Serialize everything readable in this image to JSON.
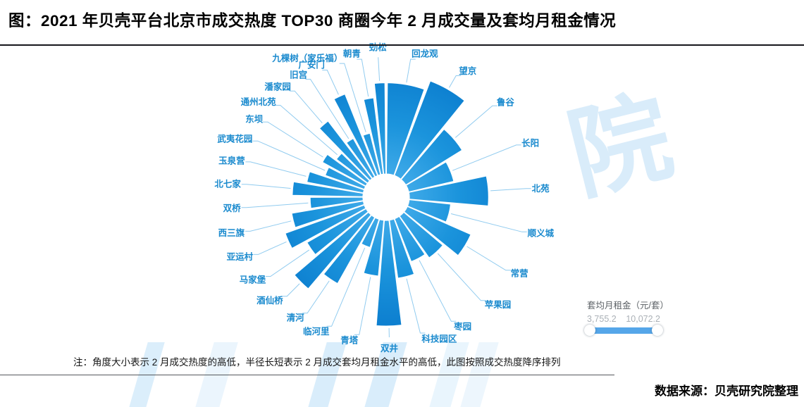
{
  "page": {
    "title": "图：2021 年贝壳平台北京市成交热度 TOP30 商圈今年 2 月成交量及套均月租金情况",
    "note": "注：角度大小表示 2 月成交热度的高低，半径长短表示 2 月成交套均月租金水平的高低，此图按照成交热度降序排列",
    "source": "数据来源：贝壳研究院整理",
    "watermark_char": "院",
    "colors": {
      "petal_inner": "#7dcbf3",
      "petal_mid": "#1b94dc",
      "petal_outer": "#0c7ecf",
      "leader_line": "#90cbef",
      "label_text": "#1a8ace",
      "legend_bar": "#55a6e9",
      "watermark": "#d9ecfa"
    }
  },
  "legend": {
    "title": "套均月租金（元/套）",
    "min_label": "3,755.2",
    "max_label": "10,072.2"
  },
  "chart_data": {
    "type": "rose",
    "subtype": "nightingale-polar",
    "title": "2021年贝壳平台北京市成交热度TOP30商圈今年2月成交量及套均月租金情况",
    "angle_encodes": "2月成交热度（角度越大热度越高）",
    "radius_encodes": "2月成交套均月租金（元/套）",
    "sort": "按成交热度降序、自12点钟方向顺时针排列",
    "rent_min": 3755.2,
    "rent_max": 10072.2,
    "legend_position": "bottom-right",
    "districts": [
      {
        "name": "回龙观",
        "heat_weight": 20.0,
        "avg_rent": 8865
      },
      {
        "name": "望京",
        "heat_weight": 19.5,
        "avg_rent": 9690
      },
      {
        "name": "鲁谷",
        "heat_weight": 19.0,
        "avg_rent": 6780
      },
      {
        "name": "长阳",
        "heat_weight": 18.5,
        "avg_rent": 5130
      },
      {
        "name": "北苑",
        "heat_weight": 18.0,
        "avg_rent": 7870
      },
      {
        "name": "顺义城",
        "heat_weight": 17.5,
        "avg_rent": 4750
      },
      {
        "name": "常营",
        "heat_weight": 16.5,
        "avg_rent": 7050
      },
      {
        "name": "苹果园",
        "heat_weight": 15.5,
        "avg_rent": 5540
      },
      {
        "name": "枣园",
        "heat_weight": 14.0,
        "avg_rent": 5110
      },
      {
        "name": "科技园区",
        "heat_weight": 13.0,
        "avg_rent": 6170
      },
      {
        "name": "双井",
        "heat_weight": 12.5,
        "avg_rent": 10072.2
      },
      {
        "name": "青塔",
        "heat_weight": 12.0,
        "avg_rent": 5950
      },
      {
        "name": "临河里",
        "heat_weight": 11.5,
        "avg_rent": 3755.2
      },
      {
        "name": "清河",
        "heat_weight": 11.0,
        "avg_rent": 7600
      },
      {
        "name": "酒仙桥",
        "heat_weight": 10.5,
        "avg_rent": 9360
      },
      {
        "name": "马家堡",
        "heat_weight": 10.5,
        "avg_rent": 6940
      },
      {
        "name": "亚运村",
        "heat_weight": 10.0,
        "avg_rent": 8260
      },
      {
        "name": "西三旗",
        "heat_weight": 10.0,
        "avg_rent": 7320
      },
      {
        "name": "双桥",
        "heat_weight": 9.5,
        "avg_rent": 5680
      },
      {
        "name": "北七家",
        "heat_weight": 9.5,
        "avg_rent": 7160
      },
      {
        "name": "玉泉营",
        "heat_weight": 9.0,
        "avg_rent": 6060
      },
      {
        "name": "武夷花园",
        "heat_weight": 9.0,
        "avg_rent": 4740
      },
      {
        "name": "东坝",
        "heat_weight": 8.5,
        "avg_rent": 5400
      },
      {
        "name": "通州北苑",
        "heat_weight": 8.5,
        "avg_rent": 4560
      },
      {
        "name": "潘家园",
        "heat_weight": 8.0,
        "avg_rent": 7320
      },
      {
        "name": "旧宫",
        "heat_weight": 8.0,
        "avg_rent": 4960
      },
      {
        "name": "广安门",
        "heat_weight": 7.5,
        "avg_rent": 8590
      },
      {
        "name": "九棵树（家乐福）",
        "heat_weight": 7.5,
        "avg_rent": 4850
      },
      {
        "name": "朝青",
        "heat_weight": 7.0,
        "avg_rent": 7680
      },
      {
        "name": "劲松",
        "heat_weight": 6.5,
        "avg_rent": 8870
      }
    ]
  }
}
